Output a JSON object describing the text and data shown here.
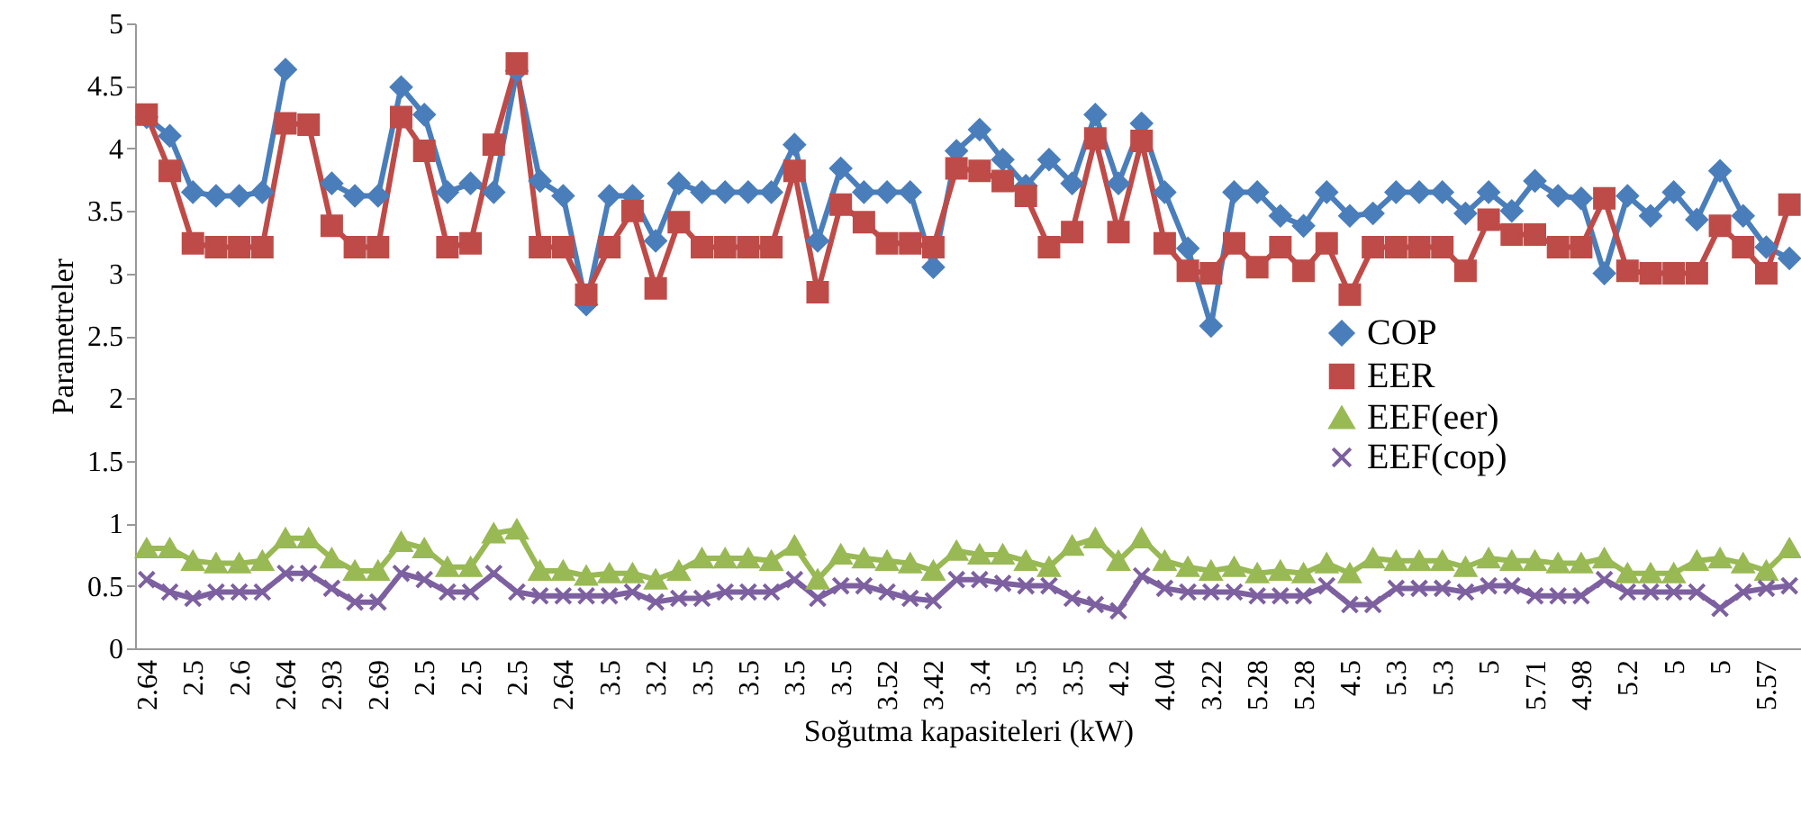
{
  "chart_data": {
    "type": "line",
    "xlabel": "Soğutma kapasiteleri (kW)",
    "ylabel": "Parametreler",
    "legend": "right",
    "line_style": "solid",
    "categories": [
      "2.64",
      null,
      "2.5",
      null,
      "2.6",
      null,
      "2.64",
      null,
      "2.93",
      null,
      "2.69",
      null,
      "2.5",
      null,
      "2.5",
      null,
      "2.5",
      null,
      "2.64",
      null,
      "3.5",
      null,
      "3.2",
      null,
      "3.5",
      null,
      "3.5",
      null,
      "3.5",
      null,
      "3.5",
      null,
      "3.52",
      null,
      "3.42",
      null,
      "3.4",
      null,
      "3.5",
      null,
      "3.5",
      null,
      "4.2",
      null,
      "4.04",
      null,
      "3.22",
      null,
      "5.28",
      null,
      "5.28",
      null,
      "4.5",
      null,
      "5.3",
      null,
      "5.3",
      null,
      "5",
      null,
      "5.71",
      null,
      "4.98",
      null,
      "5.2",
      null,
      "5",
      null,
      "5",
      null,
      "5.57",
      null
    ],
    "ylim": [
      0,
      5
    ],
    "yticks": [
      0,
      0.5,
      1,
      1.5,
      2,
      2.5,
      3,
      3.5,
      4,
      4.5,
      5
    ],
    "series": [
      {
        "name": "COP",
        "color": "#4a7ebb",
        "marker": "diamond",
        "values": [
          4.25,
          4.1,
          3.65,
          3.62,
          3.62,
          3.65,
          4.63,
          null,
          3.72,
          3.62,
          3.62,
          4.49,
          4.27,
          3.65,
          3.72,
          3.65,
          4.62,
          3.74,
          3.62,
          2.75,
          3.62,
          3.62,
          3.26,
          3.72,
          3.65,
          3.65,
          3.65,
          3.65,
          4.03,
          3.26,
          3.84,
          3.65,
          3.65,
          3.65,
          3.05,
          3.98,
          4.15,
          3.91,
          3.7,
          3.91,
          3.72,
          4.27,
          3.72,
          4.2,
          3.65,
          3.2,
          2.58,
          3.65,
          3.65,
          3.46,
          3.38,
          3.65,
          3.46,
          3.48,
          3.65,
          3.65,
          3.65,
          3.48,
          3.65,
          3.5,
          3.74,
          3.62,
          3.6,
          3.0,
          3.62,
          3.46,
          3.65,
          3.43,
          3.82,
          3.46,
          3.21,
          3.12
        ]
      },
      {
        "name": "EER",
        "color": "#be4b48",
        "marker": "square",
        "values": [
          4.27,
          3.82,
          3.24,
          3.21,
          3.21,
          3.21,
          4.2,
          4.19,
          3.38,
          3.21,
          3.21,
          4.25,
          3.98,
          3.21,
          3.24,
          4.03,
          4.68,
          3.21,
          3.21,
          2.83,
          3.21,
          3.5,
          2.88,
          3.41,
          3.21,
          3.21,
          3.21,
          3.21,
          3.82,
          2.85,
          3.55,
          3.41,
          3.24,
          3.24,
          3.21,
          3.84,
          3.82,
          3.74,
          3.62,
          3.21,
          3.33,
          4.08,
          3.33,
          4.06,
          3.24,
          3.02,
          3.0,
          3.24,
          3.05,
          3.21,
          3.02,
          3.24,
          2.83,
          3.21,
          3.21,
          3.21,
          3.21,
          3.02,
          3.43,
          3.31,
          3.31,
          3.21,
          3.21,
          3.6,
          3.02,
          3.0,
          3.0,
          3.0,
          3.38,
          3.21,
          3.0,
          3.55
        ]
      },
      {
        "name": "EEF(eer)",
        "color": "#98b954",
        "marker": "triangle",
        "values": [
          0.8,
          0.8,
          0.7,
          0.68,
          0.68,
          0.7,
          0.88,
          0.88,
          0.72,
          0.62,
          0.62,
          0.85,
          0.8,
          0.65,
          0.65,
          0.92,
          0.95,
          0.62,
          0.62,
          0.58,
          0.6,
          0.6,
          0.55,
          0.62,
          0.72,
          0.72,
          0.72,
          0.7,
          0.82,
          0.55,
          0.75,
          0.72,
          0.7,
          0.68,
          0.62,
          0.78,
          0.75,
          0.75,
          0.7,
          0.65,
          0.82,
          0.88,
          0.7,
          0.88,
          0.7,
          0.65,
          0.62,
          0.65,
          0.6,
          0.62,
          0.6,
          0.68,
          0.6,
          0.72,
          0.7,
          0.7,
          0.7,
          0.65,
          0.72,
          0.7,
          0.7,
          0.68,
          0.68,
          0.72,
          0.6,
          0.6,
          0.6,
          0.7,
          0.72,
          0.68,
          0.62,
          0.8
        ]
      },
      {
        "name": "EEF(cop)",
        "color": "#7d60a0",
        "marker": "cross",
        "values": [
          0.55,
          0.45,
          0.4,
          0.45,
          0.45,
          0.45,
          0.6,
          0.6,
          0.48,
          0.37,
          0.37,
          0.6,
          0.55,
          0.45,
          0.45,
          0.6,
          0.45,
          0.42,
          0.42,
          0.42,
          0.42,
          0.45,
          0.37,
          0.4,
          0.4,
          0.45,
          0.45,
          0.45,
          0.55,
          0.4,
          0.5,
          0.5,
          0.45,
          0.4,
          0.38,
          0.55,
          0.55,
          0.52,
          0.5,
          0.5,
          0.4,
          0.35,
          0.3,
          0.58,
          0.48,
          0.45,
          0.45,
          0.45,
          0.42,
          0.42,
          0.42,
          0.5,
          0.35,
          0.35,
          0.48,
          0.48,
          0.48,
          0.45,
          0.5,
          0.5,
          0.42,
          0.42,
          0.42,
          0.55,
          0.45,
          0.45,
          0.45,
          0.45,
          0.32,
          0.45,
          0.48,
          0.5
        ]
      }
    ]
  }
}
